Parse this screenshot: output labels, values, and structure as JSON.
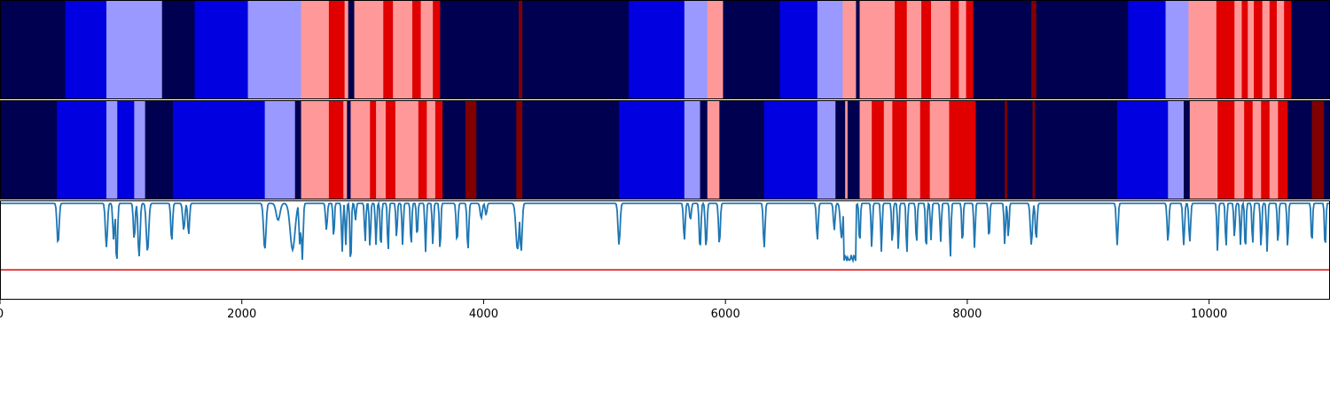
{
  "chart_data": {
    "type": "heatmap",
    "x_range": [
      0,
      11000
    ],
    "x_ticks": [
      0,
      2000,
      4000,
      6000,
      8000,
      10000
    ],
    "x_tick_labels": [
      "0",
      "2000",
      "4000",
      "6000",
      "8000",
      "10000"
    ],
    "palette": {
      "0": "#000050",
      "1": "#0000e0",
      "2": "#9999ff",
      "3": "#ff9999",
      "4": "#e00000",
      "5": "#800000"
    },
    "state_rows": [
      {
        "segments": [
          [
            0,
            540,
            0
          ],
          [
            540,
            880,
            1
          ],
          [
            880,
            1340,
            2
          ],
          [
            1340,
            1610,
            0
          ],
          [
            1610,
            2050,
            1
          ],
          [
            2050,
            2490,
            2
          ],
          [
            2490,
            2720,
            3
          ],
          [
            2720,
            2850,
            4
          ],
          [
            2850,
            2880,
            3
          ],
          [
            2880,
            2930,
            0
          ],
          [
            2930,
            3170,
            3
          ],
          [
            3170,
            3250,
            4
          ],
          [
            3250,
            3410,
            3
          ],
          [
            3410,
            3480,
            4
          ],
          [
            3480,
            3580,
            3
          ],
          [
            3580,
            3640,
            4
          ],
          [
            3640,
            4290,
            0
          ],
          [
            4290,
            4320,
            5
          ],
          [
            4320,
            5200,
            0
          ],
          [
            5200,
            5660,
            1
          ],
          [
            5660,
            5850,
            2
          ],
          [
            5850,
            5980,
            3
          ],
          [
            5980,
            6450,
            0
          ],
          [
            6450,
            6760,
            1
          ],
          [
            6760,
            6970,
            2
          ],
          [
            6970,
            7080,
            3
          ],
          [
            7080,
            7110,
            0
          ],
          [
            7110,
            7400,
            3
          ],
          [
            7400,
            7500,
            4
          ],
          [
            7500,
            7620,
            3
          ],
          [
            7620,
            7700,
            4
          ],
          [
            7700,
            7860,
            3
          ],
          [
            7860,
            7930,
            4
          ],
          [
            7930,
            7990,
            3
          ],
          [
            7990,
            8050,
            4
          ],
          [
            8050,
            8530,
            0
          ],
          [
            8530,
            8570,
            5
          ],
          [
            8570,
            9330,
            0
          ],
          [
            9330,
            9640,
            1
          ],
          [
            9640,
            9830,
            2
          ],
          [
            9830,
            10060,
            3
          ],
          [
            10060,
            10210,
            4
          ],
          [
            10210,
            10270,
            3
          ],
          [
            10270,
            10320,
            4
          ],
          [
            10320,
            10370,
            3
          ],
          [
            10370,
            10440,
            4
          ],
          [
            10440,
            10500,
            3
          ],
          [
            10500,
            10560,
            4
          ],
          [
            10560,
            10620,
            3
          ],
          [
            10620,
            10680,
            4
          ],
          [
            10680,
            11000,
            0
          ]
        ]
      },
      {
        "segments": [
          [
            0,
            470,
            0
          ],
          [
            470,
            880,
            1
          ],
          [
            880,
            970,
            2
          ],
          [
            970,
            1110,
            1
          ],
          [
            1110,
            1200,
            2
          ],
          [
            1200,
            1430,
            0
          ],
          [
            1430,
            2190,
            1
          ],
          [
            2190,
            2440,
            2
          ],
          [
            2440,
            2490,
            0
          ],
          [
            2490,
            2720,
            3
          ],
          [
            2720,
            2840,
            4
          ],
          [
            2840,
            2870,
            3
          ],
          [
            2870,
            2900,
            0
          ],
          [
            2900,
            3060,
            3
          ],
          [
            3060,
            3110,
            4
          ],
          [
            3110,
            3190,
            3
          ],
          [
            3190,
            3270,
            4
          ],
          [
            3270,
            3460,
            3
          ],
          [
            3460,
            3530,
            4
          ],
          [
            3530,
            3600,
            3
          ],
          [
            3600,
            3660,
            4
          ],
          [
            3660,
            3850,
            0
          ],
          [
            3850,
            3940,
            5
          ],
          [
            3940,
            4270,
            0
          ],
          [
            4270,
            4320,
            5
          ],
          [
            4320,
            5120,
            0
          ],
          [
            5120,
            5660,
            1
          ],
          [
            5660,
            5790,
            2
          ],
          [
            5790,
            5850,
            0
          ],
          [
            5850,
            5950,
            3
          ],
          [
            5950,
            6320,
            0
          ],
          [
            6320,
            6760,
            1
          ],
          [
            6760,
            6910,
            2
          ],
          [
            6910,
            6990,
            0
          ],
          [
            6990,
            7010,
            3
          ],
          [
            7010,
            7110,
            0
          ],
          [
            7110,
            7210,
            3
          ],
          [
            7210,
            7310,
            4
          ],
          [
            7310,
            7380,
            3
          ],
          [
            7380,
            7500,
            4
          ],
          [
            7500,
            7610,
            3
          ],
          [
            7610,
            7690,
            4
          ],
          [
            7690,
            7850,
            3
          ],
          [
            7850,
            8070,
            4
          ],
          [
            8070,
            8310,
            0
          ],
          [
            8310,
            8330,
            5
          ],
          [
            8330,
            8540,
            0
          ],
          [
            8540,
            8560,
            5
          ],
          [
            8560,
            9240,
            0
          ],
          [
            9240,
            9660,
            1
          ],
          [
            9660,
            9790,
            2
          ],
          [
            9790,
            9840,
            0
          ],
          [
            9840,
            10070,
            3
          ],
          [
            10070,
            10210,
            4
          ],
          [
            10210,
            10290,
            3
          ],
          [
            10290,
            10360,
            4
          ],
          [
            10360,
            10430,
            3
          ],
          [
            10430,
            10500,
            4
          ],
          [
            10500,
            10570,
            3
          ],
          [
            10570,
            10650,
            4
          ],
          [
            10650,
            10850,
            0
          ],
          [
            10850,
            10950,
            5
          ],
          [
            10950,
            11000,
            0
          ]
        ]
      }
    ],
    "line_panel": {
      "y_range": [
        0,
        1
      ],
      "threshold": 0.3,
      "threshold_color": "#e00000",
      "line_color": "#1f77b4",
      "baseline": 0.97,
      "dips": [
        [
          480,
          0.56,
          12
        ],
        [
          880,
          0.53,
          12
        ],
        [
          940,
          0.6,
          10
        ],
        [
          965,
          0.36,
          10
        ],
        [
          1110,
          0.6,
          10
        ],
        [
          1150,
          0.43,
          12
        ],
        [
          1220,
          0.48,
          14
        ],
        [
          1420,
          0.58,
          10
        ],
        [
          1520,
          0.7,
          12
        ],
        [
          1560,
          0.65,
          10
        ],
        [
          2190,
          0.5,
          14
        ],
        [
          2300,
          0.8,
          22
        ],
        [
          2420,
          0.5,
          28
        ],
        [
          2480,
          0.55,
          10
        ],
        [
          2500,
          0.4,
          10
        ],
        [
          2700,
          0.7,
          10
        ],
        [
          2760,
          0.62,
          8
        ],
        [
          2830,
          0.48,
          8
        ],
        [
          2860,
          0.55,
          8
        ],
        [
          2900,
          0.33,
          8
        ],
        [
          2940,
          0.8,
          8
        ],
        [
          3020,
          0.58,
          8
        ],
        [
          3060,
          0.52,
          8
        ],
        [
          3110,
          0.55,
          8
        ],
        [
          3150,
          0.5,
          8
        ],
        [
          3210,
          0.48,
          8
        ],
        [
          3280,
          0.62,
          8
        ],
        [
          3330,
          0.55,
          8
        ],
        [
          3400,
          0.53,
          8
        ],
        [
          3450,
          0.62,
          8
        ],
        [
          3520,
          0.48,
          8
        ],
        [
          3580,
          0.55,
          8
        ],
        [
          3640,
          0.48,
          8
        ],
        [
          3780,
          0.58,
          10
        ],
        [
          3870,
          0.5,
          10
        ],
        [
          3980,
          0.82,
          12
        ],
        [
          4020,
          0.85,
          10
        ],
        [
          4280,
          0.5,
          18
        ],
        [
          4310,
          0.48,
          12
        ],
        [
          5120,
          0.55,
          12
        ],
        [
          5660,
          0.6,
          10
        ],
        [
          5710,
          0.8,
          10
        ],
        [
          5790,
          0.5,
          10
        ],
        [
          5840,
          0.52,
          10
        ],
        [
          5950,
          0.55,
          10
        ],
        [
          6320,
          0.52,
          10
        ],
        [
          6760,
          0.6,
          10
        ],
        [
          6900,
          0.7,
          10
        ],
        [
          6960,
          0.62,
          14
        ],
        [
          7020,
          0.4,
          34
        ],
        [
          7110,
          0.55,
          8
        ],
        [
          7210,
          0.52,
          8
        ],
        [
          7290,
          0.48,
          8
        ],
        [
          7380,
          0.55,
          8
        ],
        [
          7430,
          0.5,
          8
        ],
        [
          7500,
          0.45,
          8
        ],
        [
          7580,
          0.55,
          8
        ],
        [
          7660,
          0.48,
          8
        ],
        [
          7700,
          0.6,
          8
        ],
        [
          7780,
          0.58,
          8
        ],
        [
          7860,
          0.42,
          8
        ],
        [
          7960,
          0.55,
          8
        ],
        [
          8060,
          0.52,
          8
        ],
        [
          8180,
          0.6,
          8
        ],
        [
          8310,
          0.55,
          8
        ],
        [
          8340,
          0.62,
          8
        ],
        [
          8530,
          0.55,
          12
        ],
        [
          8570,
          0.6,
          10
        ],
        [
          9240,
          0.55,
          10
        ],
        [
          9660,
          0.58,
          10
        ],
        [
          9790,
          0.55,
          10
        ],
        [
          9840,
          0.58,
          10
        ],
        [
          10070,
          0.48,
          8
        ],
        [
          10140,
          0.52,
          8
        ],
        [
          10210,
          0.62,
          8
        ],
        [
          10260,
          0.55,
          8
        ],
        [
          10300,
          0.48,
          8
        ],
        [
          10360,
          0.55,
          8
        ],
        [
          10430,
          0.52,
          8
        ],
        [
          10480,
          0.48,
          8
        ],
        [
          10570,
          0.55,
          8
        ],
        [
          10650,
          0.52,
          8
        ],
        [
          10850,
          0.55,
          8
        ],
        [
          10960,
          0.5,
          8
        ]
      ]
    }
  }
}
